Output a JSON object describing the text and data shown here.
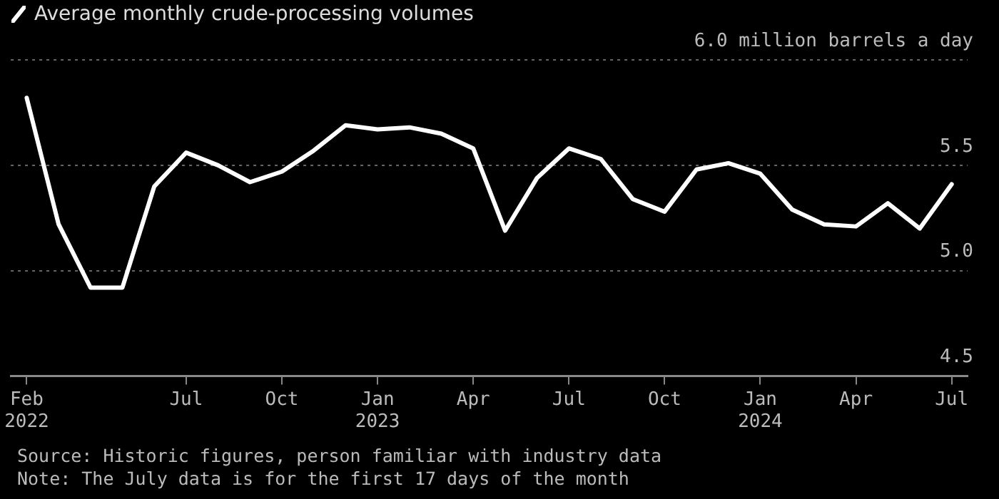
{
  "chart_data": {
    "type": "line",
    "title": "Average monthly crude-processing volumes",
    "categories": [
      "Feb 2022",
      null,
      null,
      null,
      null,
      "Jul",
      null,
      null,
      "Oct",
      null,
      null,
      "Jan 2023",
      null,
      null,
      "Apr",
      null,
      null,
      "Jul",
      null,
      null,
      "Oct",
      null,
      null,
      "Jan 2024",
      null,
      null,
      "Apr",
      null,
      null,
      "Jul"
    ],
    "series": [
      {
        "color": "#ffffff",
        "values": [
          5.82,
          5.22,
          4.92,
          4.92,
          5.4,
          5.56,
          5.5,
          5.42,
          5.47,
          5.57,
          5.69,
          5.67,
          5.68,
          5.65,
          5.58,
          5.19,
          5.44,
          5.58,
          5.53,
          5.34,
          5.28,
          5.48,
          5.51,
          5.46,
          5.29,
          5.22,
          5.21,
          5.32,
          5.2,
          5.41
        ]
      }
    ],
    "ylim": [
      4.5,
      6.0
    ],
    "yticks": [
      {
        "value": 4.5,
        "label": "4.5"
      },
      {
        "value": 5.0,
        "label": "5.0"
      },
      {
        "value": 5.5,
        "label": "5.5"
      },
      {
        "value": 6.0,
        "label": "6.0 million barrels a day"
      }
    ],
    "grid": "y",
    "legend": false,
    "marker": "none",
    "line_style": "solid",
    "annotations": [
      "Source: Historic figures, person familiar with industry data",
      "Note: The July data is for the first 17 days of the month"
    ]
  }
}
